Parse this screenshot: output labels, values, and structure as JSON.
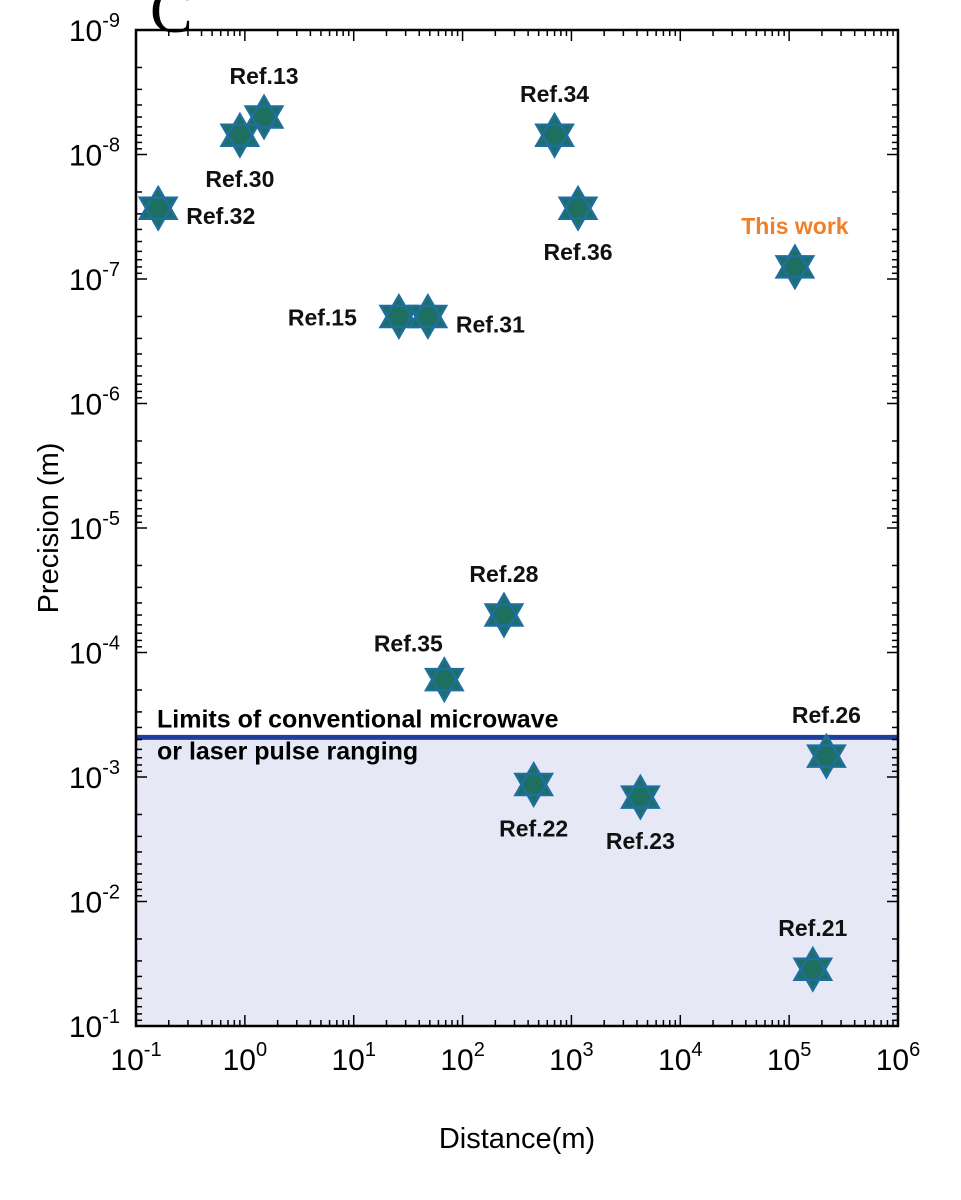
{
  "panel_label": "C",
  "chart_data": {
    "type": "scatter",
    "xlabel": "Distance(m)",
    "ylabel": "Precision (m)",
    "x_scale": "log",
    "y_scale": "log",
    "xlim": [
      0.1,
      1000000
    ],
    "ylim_note": "y axis reversed: precision 1e-9 m at top, 1e-1 m at bottom",
    "ylim": [
      0.1,
      1e-09
    ],
    "x_ticks": [
      {
        "base": "10",
        "exp": "-1",
        "value": 0.1
      },
      {
        "base": "10",
        "exp": "0",
        "value": 1
      },
      {
        "base": "10",
        "exp": "1",
        "value": 10
      },
      {
        "base": "10",
        "exp": "2",
        "value": 100
      },
      {
        "base": "10",
        "exp": "3",
        "value": 1000
      },
      {
        "base": "10",
        "exp": "4",
        "value": 10000
      },
      {
        "base": "10",
        "exp": "5",
        "value": 100000
      },
      {
        "base": "10",
        "exp": "6",
        "value": 1000000
      }
    ],
    "y_ticks": [
      {
        "base": "10",
        "exp": "-9",
        "value": 1e-09
      },
      {
        "base": "10",
        "exp": "-8",
        "value": 1e-08
      },
      {
        "base": "10",
        "exp": "-7",
        "value": 1e-07
      },
      {
        "base": "10",
        "exp": "-6",
        "value": 1e-06
      },
      {
        "base": "10",
        "exp": "-5",
        "value": 1e-05
      },
      {
        "base": "10",
        "exp": "-4",
        "value": 0.0001
      },
      {
        "base": "10",
        "exp": "-3",
        "value": 0.001
      },
      {
        "base": "10",
        "exp": "-2",
        "value": 0.01
      },
      {
        "base": "10",
        "exp": "-1",
        "value": 0.1
      }
    ],
    "marker": {
      "shape": "hexagram",
      "fill": "#1d6f5f",
      "stroke": "#1f6f9e"
    },
    "points": [
      {
        "label": "Ref.13",
        "x": 1.5,
        "y": 5e-09,
        "label_pos": "above",
        "label_color": "#111111"
      },
      {
        "label": "Ref.30",
        "x": 0.9,
        "y": 7e-09,
        "label_pos": "below",
        "label_color": "#111111"
      },
      {
        "label": "Ref.32",
        "x": 0.16,
        "y": 2.7e-08,
        "label_pos": "right",
        "label_color": "#111111"
      },
      {
        "label": "Ref.34",
        "x": 700,
        "y": 7e-09,
        "label_pos": "above",
        "label_color": "#111111"
      },
      {
        "label": "Ref.36",
        "x": 1150,
        "y": 2.7e-08,
        "label_pos": "below",
        "label_color": "#111111"
      },
      {
        "label": "This work",
        "x": 113000,
        "y": 8e-08,
        "label_pos": "above",
        "label_color": "#f07f2a"
      },
      {
        "label": "Ref.15",
        "x": 26,
        "y": 2e-07,
        "label_pos": "left",
        "label_color": "#111111"
      },
      {
        "label": "Ref.31",
        "x": 48,
        "y": 2e-07,
        "label_pos": "right",
        "label_color": "#111111"
      },
      {
        "label": "Ref.28",
        "x": 240,
        "y": 5e-05,
        "label_pos": "above",
        "label_color": "#111111"
      },
      {
        "label": "Ref.35",
        "x": 68,
        "y": 0.000165,
        "label_pos": "above-left",
        "label_color": "#111111"
      },
      {
        "label": "Ref.26",
        "x": 220000,
        "y": 0.00068,
        "label_pos": "above",
        "label_color": "#111111"
      },
      {
        "label": "Ref.22",
        "x": 450,
        "y": 0.00115,
        "label_pos": "below",
        "label_color": "#111111"
      },
      {
        "label": "Ref.23",
        "x": 4300,
        "y": 0.00145,
        "label_pos": "below",
        "label_color": "#111111"
      },
      {
        "label": "Ref.21",
        "x": 165000,
        "y": 0.035,
        "label_pos": "above",
        "label_color": "#111111"
      }
    ],
    "limit_line": {
      "y": 0.00048,
      "color": "#1f3fa0",
      "label_lines": [
        "Limits of conventional microwave",
        "or laser pulse ranging"
      ]
    },
    "shaded_region": {
      "from_y": 0.00048,
      "to_y": 0.1,
      "color": "#e6e9f5"
    },
    "grid": false
  }
}
